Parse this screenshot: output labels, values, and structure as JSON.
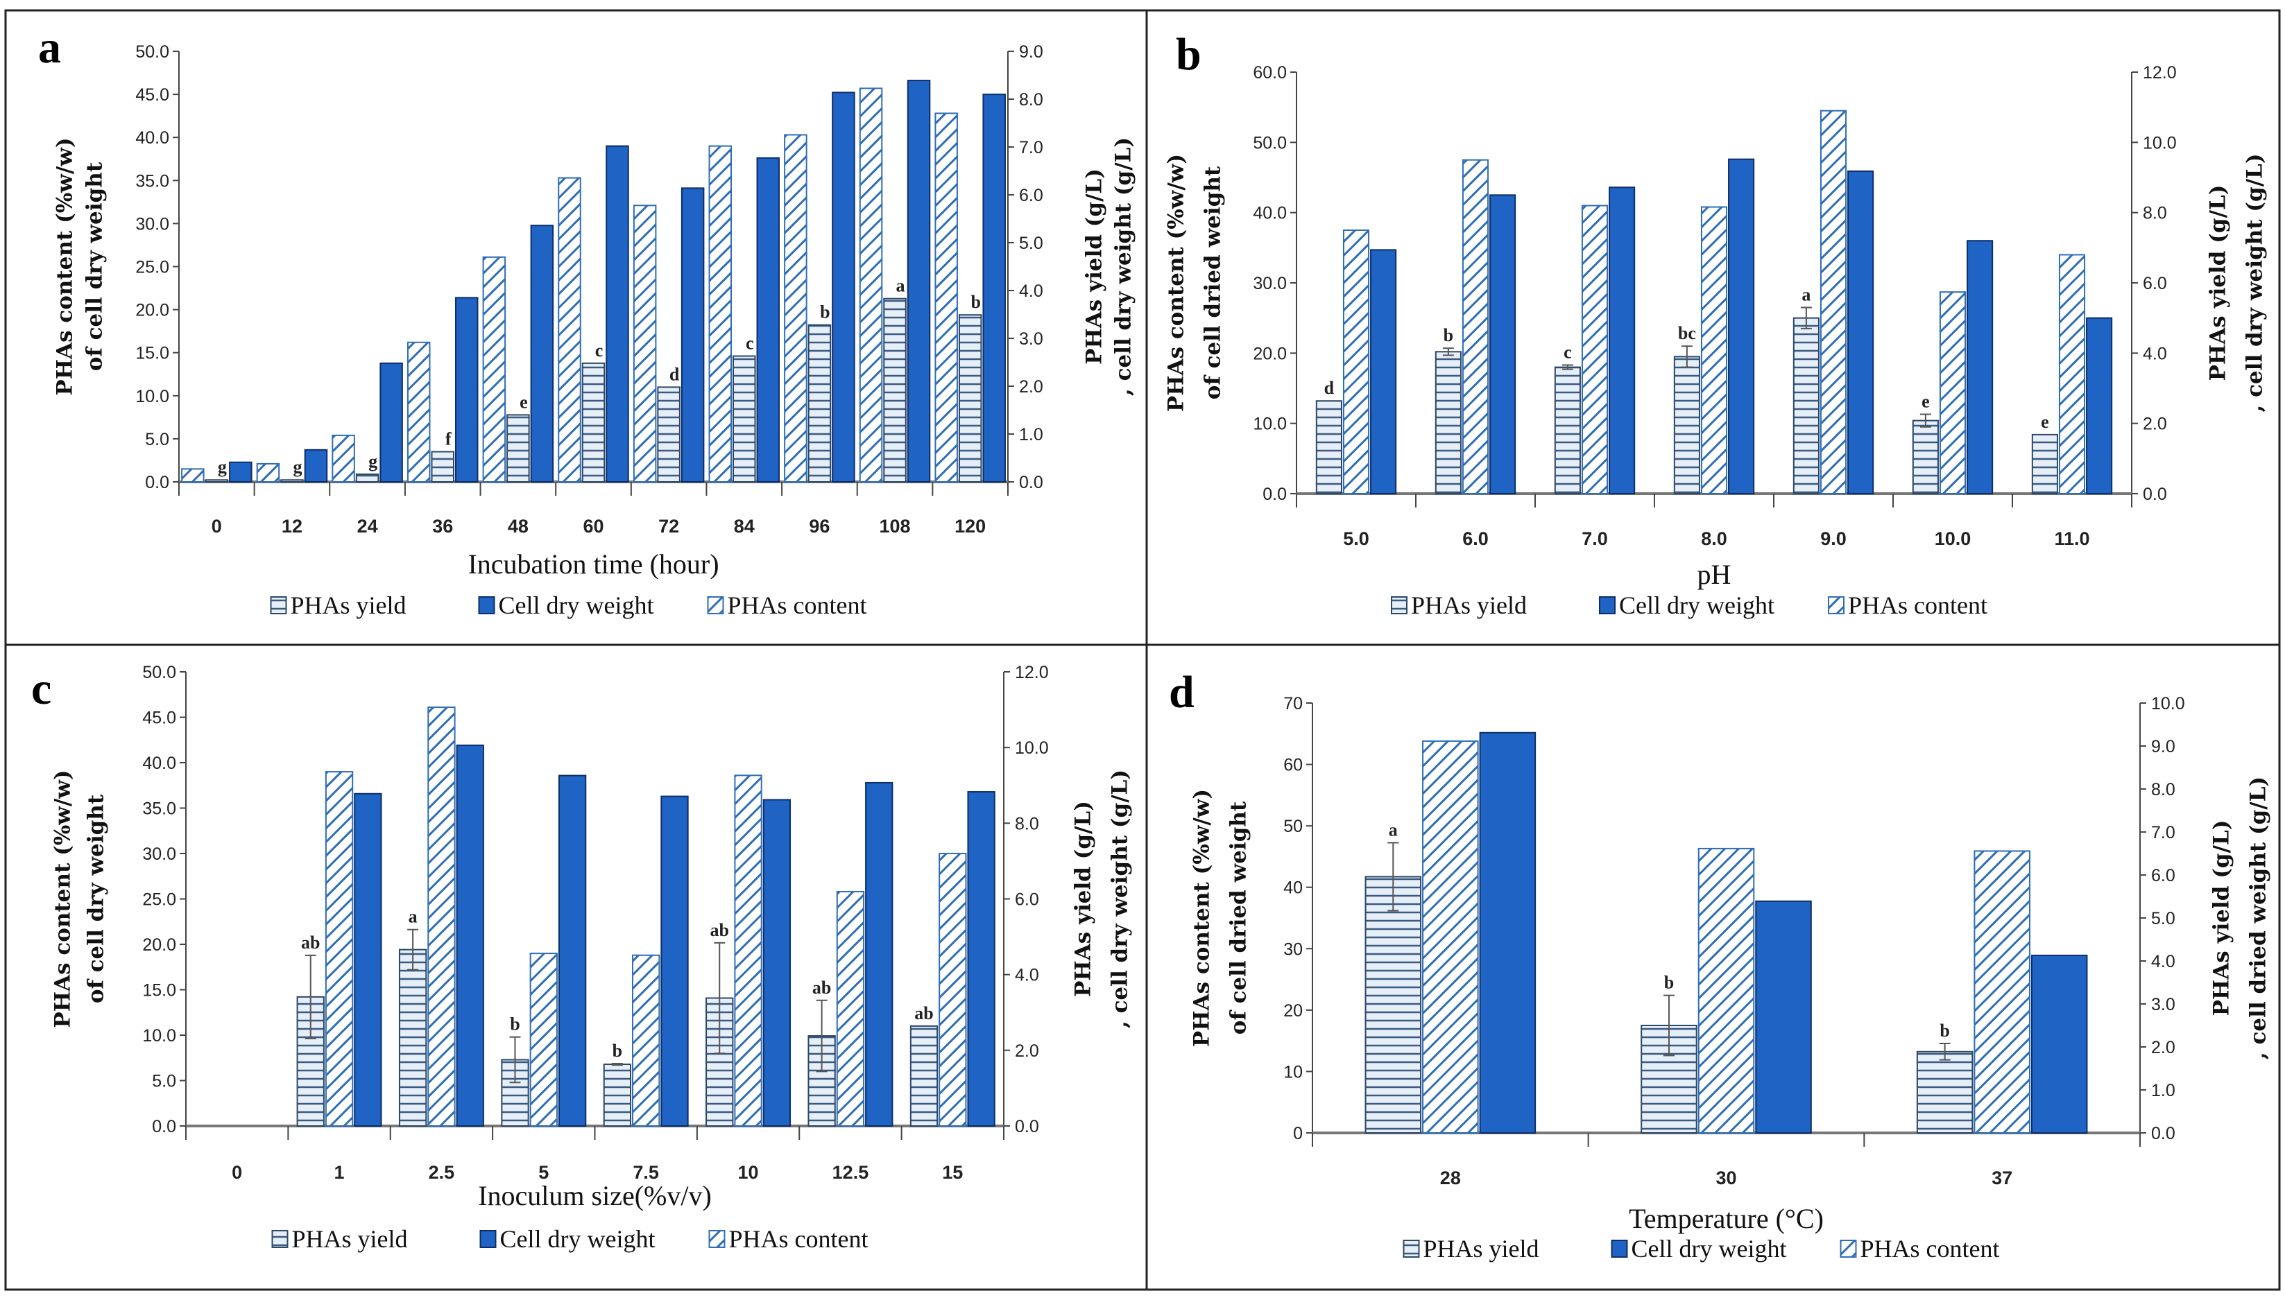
{
  "colors": {
    "cdw": "#1f63c4",
    "cdw_edge": "#0d2f66",
    "hatch": "#2f6db5",
    "stripe_fill": "#e6eef8",
    "stripe_line": "#3a5a80",
    "axis": "#444444"
  },
  "chart_data": [
    {
      "type": "bar",
      "panel": "a",
      "xlabel": "Incubation  time (hour)",
      "ylabel_left": [
        "PHAs content (%w/w)",
        "of cell dry weight"
      ],
      "ylabel_right": [
        "PHAs yield (g/L)",
        ", cell dry weight (g/L)"
      ],
      "ylim_left": [
        0,
        50
      ],
      "ylim_right": [
        0,
        9
      ],
      "yticks_left": [
        "0.0",
        "5.0",
        "10.0",
        "15.0",
        "20.0",
        "25.0",
        "30.0",
        "35.0",
        "40.0",
        "45.0",
        "50.0"
      ],
      "yticks_right": [
        "0.0",
        "1.0",
        "2.0",
        "3.0",
        "4.0",
        "5.0",
        "6.0",
        "7.0",
        "8.0",
        "9.0"
      ],
      "categories": [
        "0",
        "12",
        "24",
        "36",
        "48",
        "60",
        "72",
        "84",
        "96",
        "108",
        "120"
      ],
      "bar_order": [
        "content",
        "yield",
        "cdw"
      ],
      "series": {
        "content": {
          "name": "PHAs content",
          "axis": "left",
          "values": [
            1.5,
            2.1,
            5.4,
            16.2,
            26.1,
            35.3,
            32.1,
            39.0,
            40.3,
            45.7,
            42.8
          ]
        },
        "yield": {
          "name": "PHAs yield",
          "axis": "right",
          "values": [
            0.04,
            0.04,
            0.16,
            0.63,
            1.4,
            2.48,
            1.98,
            2.63,
            3.28,
            3.83,
            3.49
          ],
          "errors": [
            0,
            0,
            0,
            0,
            0,
            0,
            0,
            0,
            0,
            0,
            0
          ],
          "letters": [
            "g",
            "g",
            "g",
            "f",
            "e",
            "c",
            "d",
            "c",
            "b",
            "a",
            "b"
          ]
        },
        "cdw": {
          "name": "Cell dry weight",
          "axis": "right",
          "values": [
            0.41,
            0.67,
            2.48,
            3.85,
            5.36,
            7.02,
            6.14,
            6.77,
            8.14,
            8.39,
            8.1
          ]
        }
      },
      "legend": [
        "PHAs yield",
        "Cell dry weight",
        "PHAs content"
      ],
      "legend_placement": "bottom"
    },
    {
      "type": "bar",
      "panel": "b",
      "xlabel": "pH",
      "ylabel_left": [
        "PHAs content (%w/w)",
        "of cell dried weight"
      ],
      "ylabel_right": [
        "PHAs yield (g/L)",
        ", cell dry weight (g/L)"
      ],
      "ylim_left": [
        0,
        60
      ],
      "ylim_right": [
        0,
        12
      ],
      "yticks_left": [
        "0.0",
        "10.0",
        "20.0",
        "30.0",
        "40.0",
        "50.0",
        "60.0"
      ],
      "yticks_right": [
        "0.0",
        "2.0",
        "4.0",
        "6.0",
        "8.0",
        "10.0",
        "12.0"
      ],
      "categories": [
        "5.0",
        "6.0",
        "7.0",
        "8.0",
        "9.0",
        "10.0",
        "11.0"
      ],
      "bar_order": [
        "yield",
        "content",
        "cdw"
      ],
      "series": {
        "yield": {
          "name": "PHAs yield",
          "axis": "right",
          "values": [
            2.64,
            4.04,
            3.6,
            3.9,
            5.0,
            2.08,
            1.68
          ],
          "errors": [
            0,
            0.1,
            0.06,
            0.3,
            0.3,
            0.18,
            0
          ],
          "letters": [
            "d",
            "b",
            "c",
            "bc",
            "a",
            "e",
            "e"
          ]
        },
        "content": {
          "name": "PHAs content",
          "axis": "left",
          "values": [
            37.5,
            47.5,
            41.0,
            40.8,
            54.5,
            28.7,
            34.0
          ]
        },
        "cdw": {
          "name": "Cell dry weight",
          "axis": "right",
          "values": [
            6.94,
            8.5,
            8.72,
            9.52,
            9.18,
            7.2,
            5.0
          ]
        }
      },
      "legend": [
        "PHAs yield",
        "Cell dry weight",
        "PHAs content"
      ],
      "legend_placement": "bottom"
    },
    {
      "type": "bar",
      "panel": "c",
      "xlabel": "Inoculum size(%v/v)",
      "ylabel_left": [
        "PHAs content (%w/w)",
        "of cell dry weight"
      ],
      "ylabel_right": [
        "PHAs yield (g/L)",
        ", cell dry weight (g/L)"
      ],
      "ylim_left": [
        0,
        50
      ],
      "ylim_right": [
        0,
        12
      ],
      "yticks_left": [
        "0.0",
        "5.0",
        "10.0",
        "15.0",
        "20.0",
        "25.0",
        "30.0",
        "35.0",
        "40.0",
        "45.0",
        "50.0"
      ],
      "yticks_right": [
        "0.0",
        "2.0",
        "4.0",
        "6.0",
        "8.0",
        "10.0",
        "12.0"
      ],
      "categories": [
        "0",
        "1",
        "2.5",
        "5",
        "7.5",
        "10",
        "12.5",
        "15"
      ],
      "bar_order": [
        "yield",
        "content",
        "cdw"
      ],
      "series": {
        "yield": {
          "name": "PHAs yield",
          "axis": "right",
          "values": [
            0,
            3.41,
            4.66,
            1.75,
            1.63,
            3.38,
            2.38,
            2.64
          ],
          "errors": [
            0,
            1.1,
            0.53,
            0.6,
            0.02,
            1.46,
            0.94,
            0
          ],
          "letters": [
            "",
            "ab",
            "a",
            "b",
            "b",
            "ab",
            "ab",
            "ab"
          ]
        },
        "content": {
          "name": "PHAs content",
          "axis": "left",
          "values": [
            0,
            39.0,
            46.1,
            19.0,
            18.8,
            38.6,
            25.8,
            30.0
          ]
        },
        "cdw": {
          "name": "Cell dry weight",
          "axis": "right",
          "values": [
            0,
            8.78,
            10.06,
            9.26,
            8.71,
            8.62,
            9.07,
            8.83
          ]
        }
      },
      "legend": [
        "PHAs yield",
        "Cell dry weight",
        "PHAs content"
      ],
      "legend_placement": "bottom"
    },
    {
      "type": "bar",
      "panel": "d",
      "xlabel": "Temperature (°C)",
      "ylabel_left": [
        "PHAs content (%w/w)",
        "of cell dried weight"
      ],
      "ylabel_right": [
        "PHAs yield (g/L)",
        ", cell dried weight (g/L)"
      ],
      "ylim_left": [
        0,
        70
      ],
      "ylim_right": [
        0,
        10
      ],
      "yticks_left": [
        "0",
        "10",
        "20",
        "30",
        "40",
        "50",
        "60",
        "70"
      ],
      "yticks_right": [
        "0.0",
        "1.0",
        "2.0",
        "3.0",
        "4.0",
        "5.0",
        "6.0",
        "7.0",
        "8.0",
        "9.0",
        "10.0"
      ],
      "categories": [
        "28",
        "30",
        "37"
      ],
      "bar_order": [
        "yield",
        "content",
        "cdw"
      ],
      "series": {
        "yield": {
          "name": "PHAs yield",
          "axis": "right",
          "values": [
            5.96,
            2.5,
            1.89
          ],
          "errors": [
            0.79,
            0.7,
            0.19
          ],
          "letters": [
            "a",
            "b",
            "b"
          ]
        },
        "content": {
          "name": "PHAs content",
          "axis": "left",
          "values": [
            63.8,
            46.3,
            45.9
          ]
        },
        "cdw": {
          "name": "Cell dry weight",
          "axis": "right",
          "values": [
            9.31,
            5.39,
            4.13
          ]
        }
      },
      "legend": [
        "PHAs yield",
        "Cell dry weight",
        "PHAs content"
      ],
      "legend_placement": "bottom"
    }
  ]
}
